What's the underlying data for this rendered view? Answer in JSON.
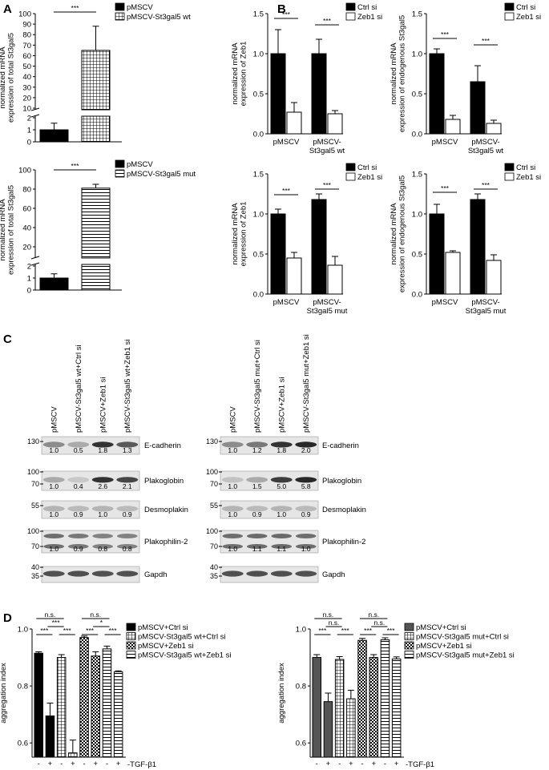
{
  "panel_letters": {
    "a": "A",
    "b": "B",
    "c": "C",
    "d": "D"
  },
  "chart_data": [
    {
      "id": "A1",
      "type": "bar",
      "categories": [
        "",
        ""
      ],
      "values": [
        1,
        65
      ],
      "errors": [
        0.55,
        23
      ],
      "ylabel": [
        "normalized mRNA",
        "expression of total St3gal5"
      ],
      "ylim": [
        0,
        100
      ],
      "axis_break": [
        2,
        10
      ],
      "ticks": [
        "0",
        "1",
        "2",
        "10",
        "20",
        "30",
        "40",
        "50",
        "60",
        "70",
        "80",
        "90",
        "100"
      ],
      "fills": [
        "black",
        "grid"
      ],
      "legend": [
        "pMSCV",
        "pMSCV-St3gal5 wt"
      ],
      "sig": [
        {
          "label": "***"
        }
      ]
    },
    {
      "id": "A2",
      "type": "bar",
      "categories": [
        "",
        ""
      ],
      "values": [
        1,
        81
      ],
      "errors": [
        0.35,
        4
      ],
      "ylabel": [
        "normalized mRNA",
        "expression of total St3gal5"
      ],
      "ylim": [
        0,
        100
      ],
      "axis_break": [
        2,
        10
      ],
      "ticks": [
        "0",
        "1",
        "2",
        "20",
        "40",
        "60",
        "80",
        "100"
      ],
      "fills": [
        "black",
        "hstripe"
      ],
      "legend": [
        "pMSCV",
        "pMSCV-St3gal5 mut"
      ],
      "sig": [
        {
          "label": "***"
        }
      ]
    },
    {
      "id": "B1",
      "type": "bar",
      "categories": [
        "pMSCV",
        "pMSCV-\nSt3gal5 wt"
      ],
      "series": [
        {
          "name": "Ctrl si",
          "values": [
            1.0,
            1.0
          ],
          "errors": [
            0.3,
            0.18
          ]
        },
        {
          "name": "Zeb1 si",
          "values": [
            0.27,
            0.25
          ],
          "errors": [
            0.12,
            0.04
          ]
        }
      ],
      "ylabel": [
        "normalized mRNA",
        "expression of Zeb1"
      ],
      "ylim": [
        0,
        1.5
      ],
      "ticks": [
        "0.0",
        "0.5",
        "1.0",
        "1.5"
      ],
      "sig": [
        {
          "label": "***"
        },
        {
          "label": "***"
        }
      ]
    },
    {
      "id": "B2",
      "type": "bar",
      "categories": [
        "pMSCV",
        "pMSCV-\nSt3gal5 wt"
      ],
      "series": [
        {
          "name": "Ctrl si",
          "values": [
            1.0,
            0.65
          ],
          "errors": [
            0.06,
            0.2
          ]
        },
        {
          "name": "Zeb1 si",
          "values": [
            0.18,
            0.13
          ],
          "errors": [
            0.05,
            0.04
          ]
        }
      ],
      "ylabel": [
        "normalized mRNA",
        "expression of endogenous St3gal5"
      ],
      "ylim": [
        0,
        1.5
      ],
      "ticks": [
        "0.0",
        "0.5",
        "1.0",
        "1.5"
      ],
      "sig": [
        {
          "label": "***"
        },
        {
          "label": "***"
        }
      ]
    },
    {
      "id": "B3",
      "type": "bar",
      "categories": [
        "pMSCV",
        "pMSCV-\nSt3gal5 mut"
      ],
      "series": [
        {
          "name": "Ctrl si",
          "values": [
            1.0,
            1.18
          ],
          "errors": [
            0.06,
            0.07
          ]
        },
        {
          "name": "Zeb1 si",
          "values": [
            0.45,
            0.36
          ],
          "errors": [
            0.07,
            0.11
          ]
        }
      ],
      "ylabel": [
        "normalized mRNA",
        "expression of Zeb1"
      ],
      "ylim": [
        0,
        1.5
      ],
      "ticks": [
        "0.0",
        "0.5",
        "1.0",
        "1.5"
      ],
      "sig": [
        {
          "label": "***"
        },
        {
          "label": "***"
        }
      ]
    },
    {
      "id": "B4",
      "type": "bar",
      "categories": [
        "pMSCV",
        "pMSCV-\nSt3gal5 mut"
      ],
      "series": [
        {
          "name": "Ctrl si",
          "values": [
            1.0,
            1.18
          ],
          "errors": [
            0.12,
            0.07
          ]
        },
        {
          "name": "Zeb1 si",
          "values": [
            0.52,
            0.42
          ],
          "errors": [
            0.02,
            0.07
          ]
        }
      ],
      "ylabel": [
        "normalized mRNA",
        "expression of endogenous St3gal5"
      ],
      "ylim": [
        0,
        1.5
      ],
      "ticks": [
        "0.0",
        "0.5",
        "1.0",
        "1.5"
      ],
      "sig": [
        {
          "label": "***"
        },
        {
          "label": "***"
        }
      ]
    },
    {
      "id": "D1",
      "type": "bar",
      "categories": [
        "-",
        "+",
        "-",
        "+",
        "-",
        "+",
        "-",
        "+"
      ],
      "values": [
        0.915,
        0.695,
        0.9,
        0.565,
        0.97,
        0.905,
        0.93,
        0.85
      ],
      "errors": [
        0.005,
        0.045,
        0.01,
        0.045,
        0.005,
        0.015,
        0.01,
        0.003
      ],
      "fills": [
        "black",
        "black",
        "grid",
        "grid",
        "check",
        "check",
        "hstripe",
        "hstripe"
      ],
      "ylabel": [
        "aggregation index"
      ],
      "ylim": [
        0.55,
        1.0
      ],
      "ticks": [
        "0.6",
        "0.8",
        "1.0"
      ],
      "xnote": "-TGF-β1",
      "legend": [
        "pMSCV+Ctrl si",
        "pMSCV-St3gal5 wt+Ctrl si",
        "pMSCV+Zeb1 si",
        "pMSCV-St3gal5 wt+Zeb1 si"
      ],
      "sig": [
        {
          "label": "***"
        },
        {
          "label": "***"
        },
        {
          "label": "***"
        },
        {
          "label": "***"
        },
        {
          "label": "***"
        },
        {
          "label": "n.s."
        },
        {
          "label": "n.s."
        },
        {
          "label": "*"
        }
      ]
    },
    {
      "id": "D2",
      "type": "bar",
      "categories": [
        "-",
        "+",
        "-",
        "+",
        "-",
        "+",
        "-",
        "+"
      ],
      "values": [
        0.9,
        0.745,
        0.893,
        0.755,
        0.96,
        0.9,
        0.962,
        0.895
      ],
      "errors": [
        0.01,
        0.03,
        0.01,
        0.03,
        0.007,
        0.01,
        0.007,
        0.007
      ],
      "fills": [
        "grey",
        "grey",
        "grid",
        "grid",
        "check",
        "check",
        "hstripe",
        "hstripe"
      ],
      "ylabel": [
        "aggregation index"
      ],
      "ylim": [
        0.55,
        1.0
      ],
      "ticks": [
        "0.6",
        "0.8",
        "1.0"
      ],
      "xnote": "-TGF-β1",
      "legend": [
        "pMSCV+Ctrl si",
        "pMSCV-St3gal5 mut+Ctrl si",
        "pMSCV+Zeb1 si",
        "pMSCV-St3gal5 mut+Zeb1 si"
      ],
      "sig": [
        {
          "label": "***"
        },
        {
          "label": "***"
        },
        {
          "label": "***"
        },
        {
          "label": "***"
        },
        {
          "label": "n.s."
        },
        {
          "label": "n.s."
        },
        {
          "label": "n.s."
        },
        {
          "label": "n.s."
        }
      ]
    }
  ],
  "blots": [
    {
      "lanes": [
        "pMSCV",
        "pMSCV-St3gal5 wt+Ctrl si",
        "pMSCV+Zeb1 si",
        "pMSCV-St3gal5 wt+Zeb1 si"
      ],
      "rows": [
        {
          "protein": "E-cadherin",
          "markers": [
            "130"
          ],
          "values": [
            "1.0",
            "0.5",
            "1.8",
            "1.3"
          ],
          "intensity": [
            0.45,
            0.3,
            0.9,
            0.7
          ],
          "double": false
        },
        {
          "protein": "Plakoglobin",
          "markers": [
            "100",
            "70"
          ],
          "values": [
            "1.0",
            "0.4",
            "2.6",
            "2.1"
          ],
          "intensity": [
            0.3,
            0.15,
            0.9,
            0.8
          ],
          "double": false
        },
        {
          "protein": "Desmoplakin",
          "markers": [
            "55"
          ],
          "values": [
            "1.0",
            "0.9",
            "1.0",
            "0.9"
          ],
          "intensity": [
            0.25,
            0.22,
            0.25,
            0.22
          ],
          "double": false
        },
        {
          "protein": "Plakophilin-2",
          "markers": [
            "100",
            "70"
          ],
          "values": [
            "1.0",
            "0.9",
            "0.8",
            "0.8"
          ],
          "intensity": [
            0.6,
            0.55,
            0.5,
            0.5
          ],
          "double": true
        },
        {
          "protein": "Gapdh",
          "markers": [
            "40",
            "35"
          ],
          "values": [],
          "intensity": [
            0.75,
            0.75,
            0.75,
            0.75
          ],
          "double": false
        }
      ]
    },
    {
      "lanes": [
        "pMSCV",
        "pMSCV-St3gal5 mut+Ctrl si",
        "pMSCV+Zeb1 si",
        "pMSCV-St3gal5 mut+Zeb1 si"
      ],
      "rows": [
        {
          "protein": "E-cadherin",
          "markers": [
            "130"
          ],
          "values": [
            "1.0",
            "1.2",
            "1.8",
            "2.0"
          ],
          "intensity": [
            0.45,
            0.55,
            0.9,
            0.95
          ],
          "double": false
        },
        {
          "protein": "Plakoglobin",
          "markers": [
            "100",
            "70"
          ],
          "values": [
            "1.0",
            "1.5",
            "5.0",
            "5.8"
          ],
          "intensity": [
            0.18,
            0.3,
            0.85,
            0.95
          ],
          "double": false
        },
        {
          "protein": "Desmoplakin",
          "markers": [
            "55"
          ],
          "values": [
            "1.0",
            "0.9",
            "1.0",
            "0.9"
          ],
          "intensity": [
            0.25,
            0.22,
            0.25,
            0.22
          ],
          "double": false
        },
        {
          "protein": "Plakophilin-2",
          "markers": [
            "100",
            "70"
          ],
          "values": [
            "1.0",
            "1.1",
            "1.1",
            "1.0"
          ],
          "intensity": [
            0.6,
            0.62,
            0.62,
            0.6
          ],
          "double": true
        },
        {
          "protein": "Gapdh",
          "markers": [
            "40",
            "35"
          ],
          "values": [],
          "intensity": [
            0.75,
            0.75,
            0.75,
            0.75
          ],
          "double": false
        }
      ]
    }
  ]
}
